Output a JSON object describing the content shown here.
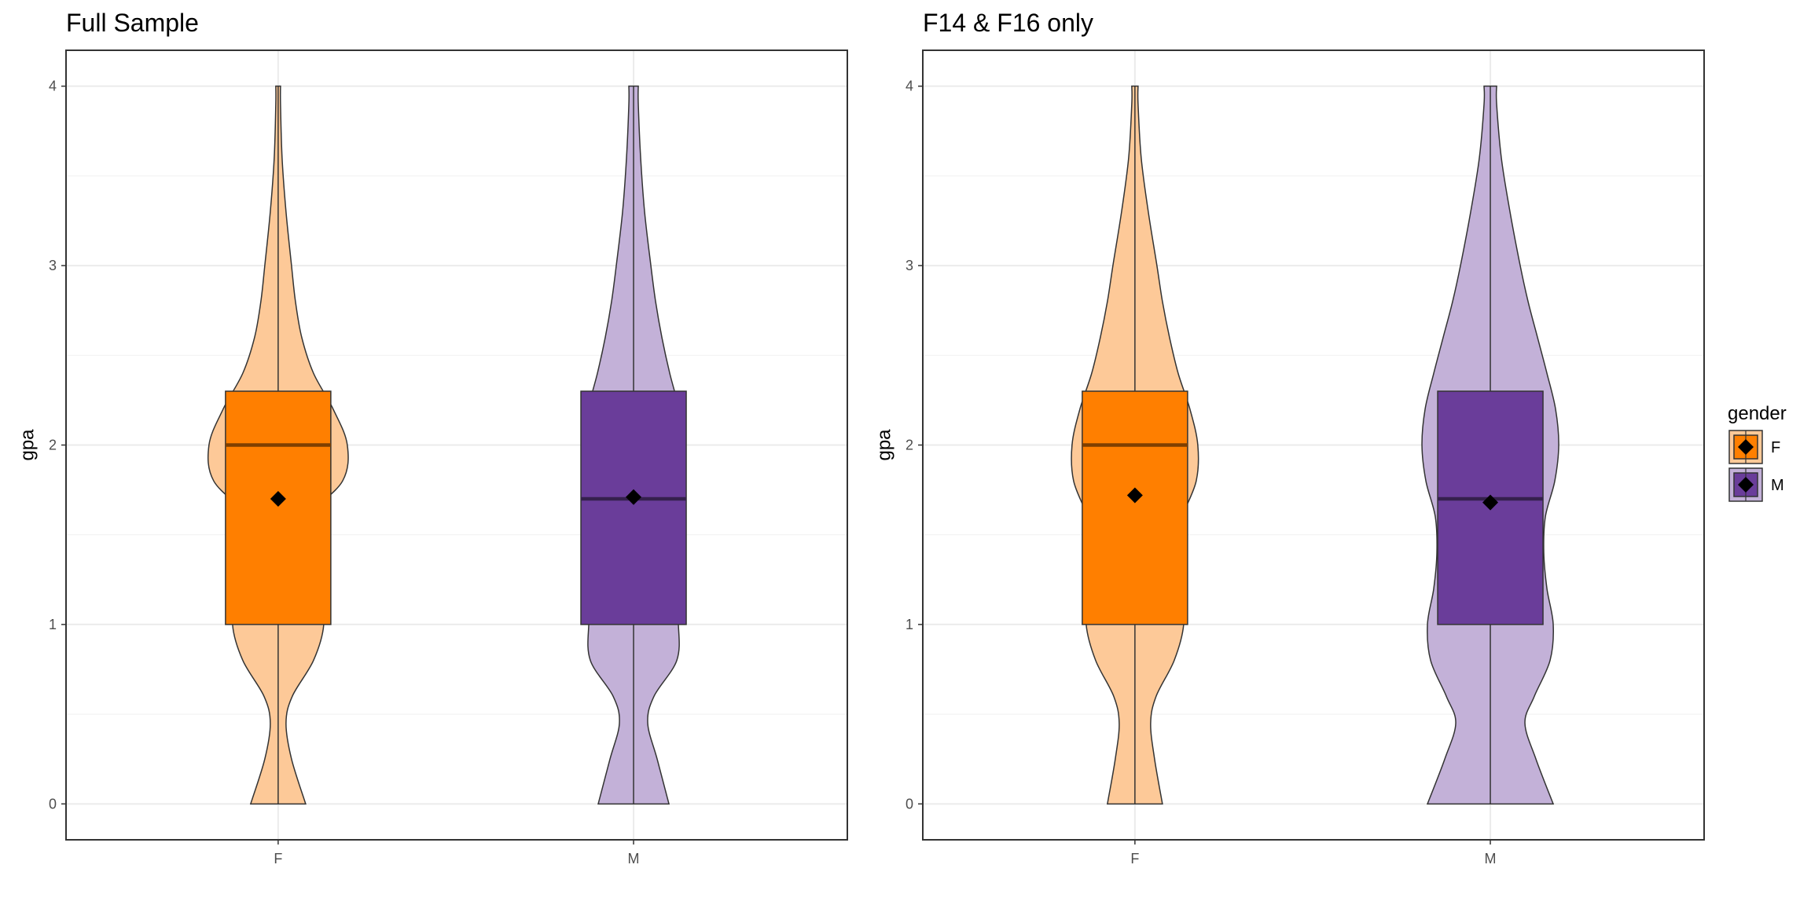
{
  "chart_data": [
    {
      "type": "violin",
      "title": "Full Sample",
      "xlabel": "",
      "ylabel": "gpa",
      "categories": [
        "F",
        "M"
      ],
      "ylim": [
        -0.2,
        4.2
      ],
      "yticks": [
        0,
        1,
        2,
        3,
        4
      ],
      "grid": true,
      "boxplots": [
        {
          "group": "F",
          "q1": 1.0,
          "median": 2.0,
          "q3": 2.3,
          "whisker_low": 0.0,
          "whisker_high": 4.0,
          "mean": 1.7
        },
        {
          "group": "M",
          "q1": 1.0,
          "median": 1.7,
          "q3": 2.3,
          "whisker_low": 0.0,
          "whisker_high": 4.0,
          "mean": 1.71
        }
      ],
      "violins": [
        {
          "group": "F",
          "y": [
            0.0,
            0.25,
            0.45,
            0.6,
            0.8,
            1.0,
            1.2,
            1.4,
            1.6,
            1.8,
            2.0,
            2.2,
            2.4,
            2.6,
            2.8,
            3.0,
            3.3,
            3.6,
            3.9,
            4.0
          ],
          "width": [
            0.35,
            0.17,
            0.1,
            0.18,
            0.45,
            0.58,
            0.52,
            0.22,
            0.38,
            0.82,
            0.88,
            0.7,
            0.45,
            0.3,
            0.22,
            0.17,
            0.1,
            0.05,
            0.03,
            0.03
          ]
        },
        {
          "group": "M",
          "y": [
            0.0,
            0.25,
            0.45,
            0.6,
            0.8,
            1.0,
            1.2,
            1.4,
            1.6,
            1.8,
            2.0,
            2.2,
            2.4,
            2.6,
            2.8,
            3.0,
            3.3,
            3.6,
            3.9,
            4.0
          ],
          "width": [
            0.45,
            0.3,
            0.18,
            0.26,
            0.55,
            0.57,
            0.52,
            0.38,
            0.5,
            0.63,
            0.66,
            0.58,
            0.46,
            0.36,
            0.28,
            0.22,
            0.14,
            0.09,
            0.06,
            0.06
          ]
        }
      ]
    },
    {
      "type": "violin",
      "title": "F14 & F16 only",
      "xlabel": "",
      "ylabel": "gpa",
      "categories": [
        "F",
        "M"
      ],
      "ylim": [
        -0.2,
        4.2
      ],
      "yticks": [
        0,
        1,
        2,
        3,
        4
      ],
      "grid": true,
      "boxplots": [
        {
          "group": "F",
          "q1": 1.0,
          "median": 2.0,
          "q3": 2.3,
          "whisker_low": 0.0,
          "whisker_high": 4.0,
          "mean": 1.72
        },
        {
          "group": "M",
          "q1": 1.0,
          "median": 1.7,
          "q3": 2.3,
          "whisker_low": 0.0,
          "whisker_high": 4.0,
          "mean": 1.68
        }
      ],
      "violins": [
        {
          "group": "F",
          "y": [
            0.0,
            0.25,
            0.45,
            0.6,
            0.8,
            1.0,
            1.2,
            1.4,
            1.6,
            1.8,
            2.0,
            2.2,
            2.4,
            2.6,
            2.8,
            3.0,
            3.3,
            3.6,
            3.9,
            4.0
          ],
          "width": [
            0.35,
            0.25,
            0.2,
            0.27,
            0.5,
            0.62,
            0.58,
            0.47,
            0.6,
            0.78,
            0.8,
            0.7,
            0.55,
            0.44,
            0.35,
            0.28,
            0.17,
            0.08,
            0.04,
            0.04
          ]
        },
        {
          "group": "M",
          "y": [
            0.0,
            0.25,
            0.45,
            0.6,
            0.8,
            1.0,
            1.2,
            1.4,
            1.6,
            1.8,
            2.0,
            2.2,
            2.4,
            2.6,
            2.8,
            3.0,
            3.3,
            3.6,
            3.9,
            4.0
          ],
          "width": [
            0.8,
            0.58,
            0.44,
            0.56,
            0.76,
            0.8,
            0.72,
            0.68,
            0.7,
            0.82,
            0.87,
            0.83,
            0.72,
            0.6,
            0.48,
            0.38,
            0.25,
            0.14,
            0.08,
            0.08
          ]
        }
      ]
    }
  ],
  "legend": {
    "title": "gender",
    "items": [
      {
        "label": "F",
        "fill": "#ff7f00"
      },
      {
        "label": "M",
        "fill": "#6a3d9a"
      }
    ]
  },
  "colors": {
    "F_violin": "#fdc998",
    "M_violin": "#c3b1d8",
    "F_box": "#ff7f00",
    "M_box": "#6a3d9a",
    "median_F": "#7f3f00",
    "median_M": "#35204d",
    "grid": "#ebebeb",
    "panel_border": "#333333",
    "outline": "#333333",
    "mean_marker": "#000000"
  }
}
